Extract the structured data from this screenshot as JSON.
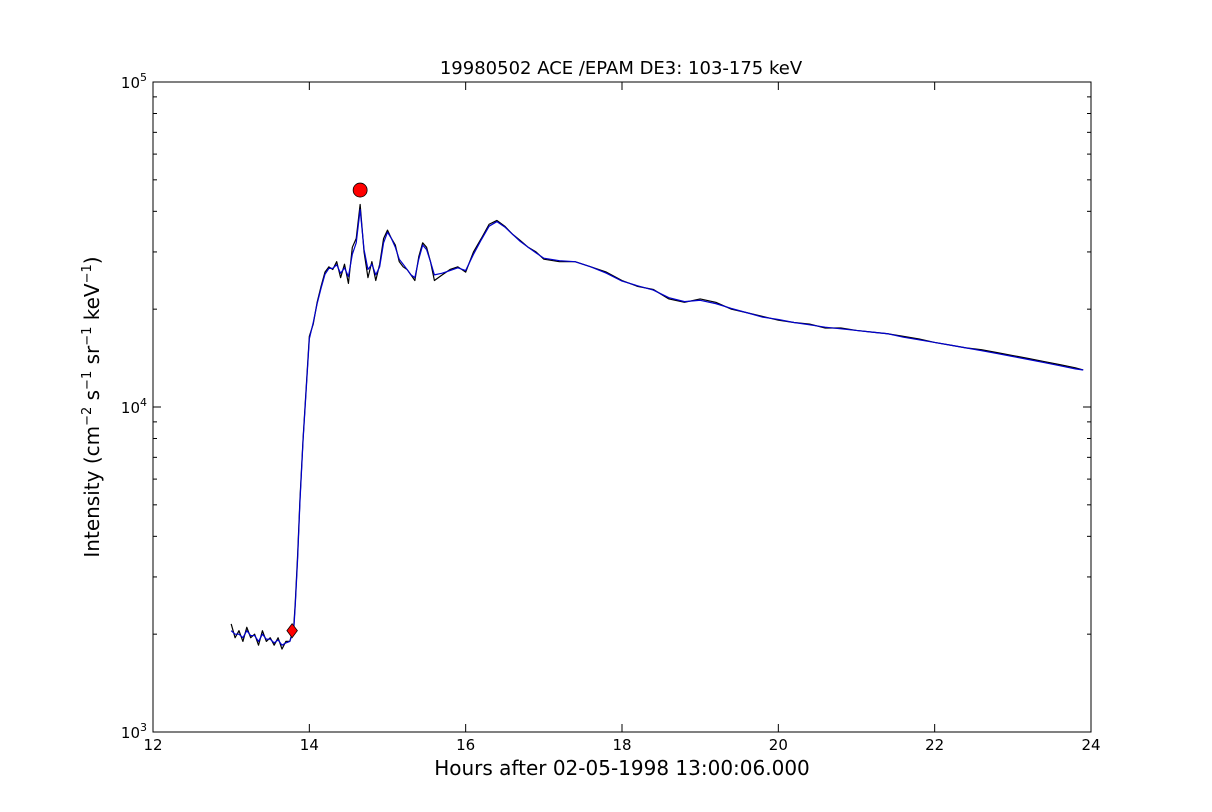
{
  "chart_data": {
    "type": "line",
    "title": "19980502 ACE /EPAM DE3: 103-175 keV",
    "xlabel": "Hours after 02-05-1998 13:00:06.000",
    "ylabel": {
      "prefix": "Intensity (cm",
      "sup1": "−2",
      "mid1": " s",
      "sup2": "−1",
      "mid2": " sr",
      "sup3": "−1",
      "mid3": " keV",
      "sup4": "−1",
      "suffix": ")"
    },
    "xlim": [
      12,
      24
    ],
    "ylim": [
      1000,
      100000
    ],
    "yscale": "log",
    "x_ticks": [
      "12",
      "14",
      "16",
      "18",
      "20",
      "22",
      "24"
    ],
    "y_ticks": [
      {
        "base": "10",
        "exp": "3",
        "value": 1000
      },
      {
        "base": "10",
        "exp": "4",
        "value": 10000
      },
      {
        "base": "10",
        "exp": "5",
        "value": 100000
      }
    ],
    "grid": false,
    "series": [
      {
        "color": "#000000",
        "points": [
          [
            13.0,
            2150
          ],
          [
            13.05,
            1950
          ],
          [
            13.1,
            2050
          ],
          [
            13.15,
            1900
          ],
          [
            13.2,
            2100
          ],
          [
            13.25,
            1950
          ],
          [
            13.3,
            2000
          ],
          [
            13.35,
            1850
          ],
          [
            13.4,
            2050
          ],
          [
            13.45,
            1900
          ],
          [
            13.5,
            1950
          ],
          [
            13.55,
            1850
          ],
          [
            13.6,
            1950
          ],
          [
            13.65,
            1800
          ],
          [
            13.7,
            1900
          ],
          [
            13.75,
            1900
          ],
          [
            13.8,
            2100
          ],
          [
            13.82,
            2500
          ],
          [
            13.85,
            3500
          ],
          [
            13.88,
            5200
          ],
          [
            13.92,
            8000
          ],
          [
            13.96,
            11500
          ],
          [
            14.0,
            16500
          ],
          [
            14.05,
            18000
          ],
          [
            14.1,
            21000
          ],
          [
            14.15,
            23500
          ],
          [
            14.2,
            26000
          ],
          [
            14.25,
            27000
          ],
          [
            14.3,
            26500
          ],
          [
            14.35,
            28000
          ],
          [
            14.4,
            25000
          ],
          [
            14.45,
            27500
          ],
          [
            14.5,
            24000
          ],
          [
            14.55,
            31000
          ],
          [
            14.6,
            33000
          ],
          [
            14.65,
            42000
          ],
          [
            14.7,
            30000
          ],
          [
            14.75,
            25000
          ],
          [
            14.8,
            28000
          ],
          [
            14.85,
            24500
          ],
          [
            14.9,
            27500
          ],
          [
            14.95,
            33000
          ],
          [
            15.0,
            35000
          ],
          [
            15.05,
            33000
          ],
          [
            15.1,
            31500
          ],
          [
            15.15,
            28000
          ],
          [
            15.2,
            27000
          ],
          [
            15.25,
            26500
          ],
          [
            15.3,
            25500
          ],
          [
            15.35,
            24500
          ],
          [
            15.4,
            29000
          ],
          [
            15.45,
            32000
          ],
          [
            15.5,
            31000
          ],
          [
            15.55,
            28000
          ],
          [
            15.6,
            24500
          ],
          [
            15.7,
            25500
          ],
          [
            15.8,
            26500
          ],
          [
            15.9,
            27000
          ],
          [
            16.0,
            26000
          ],
          [
            16.1,
            30000
          ],
          [
            16.2,
            33000
          ],
          [
            16.3,
            36500
          ],
          [
            16.4,
            37500
          ],
          [
            16.5,
            36000
          ],
          [
            16.6,
            34000
          ],
          [
            16.7,
            32500
          ],
          [
            16.8,
            31000
          ],
          [
            16.9,
            30000
          ],
          [
            17.0,
            28500
          ],
          [
            17.2,
            28000
          ],
          [
            17.4,
            28000
          ],
          [
            17.6,
            27000
          ],
          [
            17.8,
            26000
          ],
          [
            18.0,
            24500
          ],
          [
            18.2,
            23500
          ],
          [
            18.4,
            23000
          ],
          [
            18.6,
            21500
          ],
          [
            18.8,
            21000
          ],
          [
            19.0,
            21500
          ],
          [
            19.2,
            21000
          ],
          [
            19.4,
            20000
          ],
          [
            19.6,
            19500
          ],
          [
            19.8,
            19000
          ],
          [
            20.0,
            18500
          ],
          [
            20.2,
            18200
          ],
          [
            20.4,
            18000
          ],
          [
            20.6,
            17500
          ],
          [
            20.8,
            17500
          ],
          [
            21.0,
            17200
          ],
          [
            21.2,
            17000
          ],
          [
            21.4,
            16800
          ],
          [
            21.6,
            16500
          ],
          [
            21.8,
            16200
          ],
          [
            22.0,
            15800
          ],
          [
            22.2,
            15500
          ],
          [
            22.4,
            15200
          ],
          [
            22.6,
            15000
          ],
          [
            22.8,
            14700
          ],
          [
            23.0,
            14400
          ],
          [
            23.2,
            14100
          ],
          [
            23.4,
            13800
          ],
          [
            23.6,
            13500
          ],
          [
            23.8,
            13200
          ],
          [
            23.9,
            13000
          ]
        ]
      },
      {
        "color": "#0000cc",
        "points": [
          [
            13.0,
            2050
          ],
          [
            13.05,
            2000
          ],
          [
            13.1,
            2000
          ],
          [
            13.15,
            1950
          ],
          [
            13.2,
            2050
          ],
          [
            13.25,
            1980
          ],
          [
            13.3,
            1980
          ],
          [
            13.35,
            1900
          ],
          [
            13.4,
            2000
          ],
          [
            13.45,
            1930
          ],
          [
            13.5,
            1930
          ],
          [
            13.55,
            1880
          ],
          [
            13.6,
            1920
          ],
          [
            13.65,
            1850
          ],
          [
            13.7,
            1880
          ],
          [
            13.75,
            1900
          ],
          [
            13.8,
            2050
          ],
          [
            13.82,
            2450
          ],
          [
            13.85,
            3400
          ],
          [
            13.88,
            5100
          ],
          [
            13.92,
            7900
          ],
          [
            13.96,
            11300
          ],
          [
            14.0,
            16200
          ],
          [
            14.05,
            18200
          ],
          [
            14.1,
            20800
          ],
          [
            14.15,
            23200
          ],
          [
            14.2,
            25600
          ],
          [
            14.25,
            26700
          ],
          [
            14.3,
            26700
          ],
          [
            14.35,
            27400
          ],
          [
            14.4,
            25800
          ],
          [
            14.45,
            26800
          ],
          [
            14.5,
            25200
          ],
          [
            14.55,
            29500
          ],
          [
            14.6,
            32000
          ],
          [
            14.65,
            40500
          ],
          [
            14.7,
            30500
          ],
          [
            14.75,
            26500
          ],
          [
            14.8,
            27500
          ],
          [
            14.85,
            25500
          ],
          [
            14.9,
            27000
          ],
          [
            14.95,
            32000
          ],
          [
            15.0,
            34500
          ],
          [
            15.05,
            33000
          ],
          [
            15.1,
            31000
          ],
          [
            15.15,
            28500
          ],
          [
            15.2,
            27500
          ],
          [
            15.25,
            26500
          ],
          [
            15.3,
            25500
          ],
          [
            15.35,
            25000
          ],
          [
            15.4,
            28500
          ],
          [
            15.45,
            31500
          ],
          [
            15.5,
            30500
          ],
          [
            15.55,
            28000
          ],
          [
            15.6,
            25500
          ],
          [
            15.7,
            25800
          ],
          [
            15.8,
            26300
          ],
          [
            15.9,
            26800
          ],
          [
            16.0,
            26300
          ],
          [
            16.1,
            29500
          ],
          [
            16.2,
            32700
          ],
          [
            16.3,
            36000
          ],
          [
            16.4,
            37200
          ],
          [
            16.5,
            35800
          ],
          [
            16.6,
            34000
          ],
          [
            16.7,
            32300
          ],
          [
            16.8,
            31000
          ],
          [
            16.9,
            29800
          ],
          [
            17.0,
            28700
          ],
          [
            17.2,
            28200
          ],
          [
            17.4,
            28000
          ],
          [
            17.6,
            27000
          ],
          [
            17.8,
            25800
          ],
          [
            18.0,
            24400
          ],
          [
            18.2,
            23600
          ],
          [
            18.4,
            22900
          ],
          [
            18.6,
            21700
          ],
          [
            18.8,
            21100
          ],
          [
            19.0,
            21300
          ],
          [
            19.2,
            20800
          ],
          [
            19.4,
            20100
          ],
          [
            19.6,
            19500
          ],
          [
            19.8,
            18900
          ],
          [
            20.0,
            18600
          ],
          [
            20.2,
            18200
          ],
          [
            20.4,
            17900
          ],
          [
            20.6,
            17600
          ],
          [
            20.8,
            17400
          ],
          [
            21.0,
            17200
          ],
          [
            21.2,
            17000
          ],
          [
            21.4,
            16800
          ],
          [
            21.6,
            16400
          ],
          [
            21.8,
            16100
          ],
          [
            22.0,
            15800
          ],
          [
            22.2,
            15500
          ],
          [
            22.4,
            15200
          ],
          [
            22.6,
            14900
          ],
          [
            22.8,
            14600
          ],
          [
            23.0,
            14300
          ],
          [
            23.2,
            14000
          ],
          [
            23.4,
            13700
          ],
          [
            23.6,
            13400
          ],
          [
            23.8,
            13100
          ],
          [
            23.9,
            13000
          ]
        ]
      }
    ],
    "markers": [
      {
        "shape": "diamond",
        "x": 13.78,
        "y": 2050,
        "color": "#ff0000"
      },
      {
        "shape": "circle",
        "x": 14.65,
        "y": 46500,
        "color": "#ff0000"
      }
    ]
  }
}
